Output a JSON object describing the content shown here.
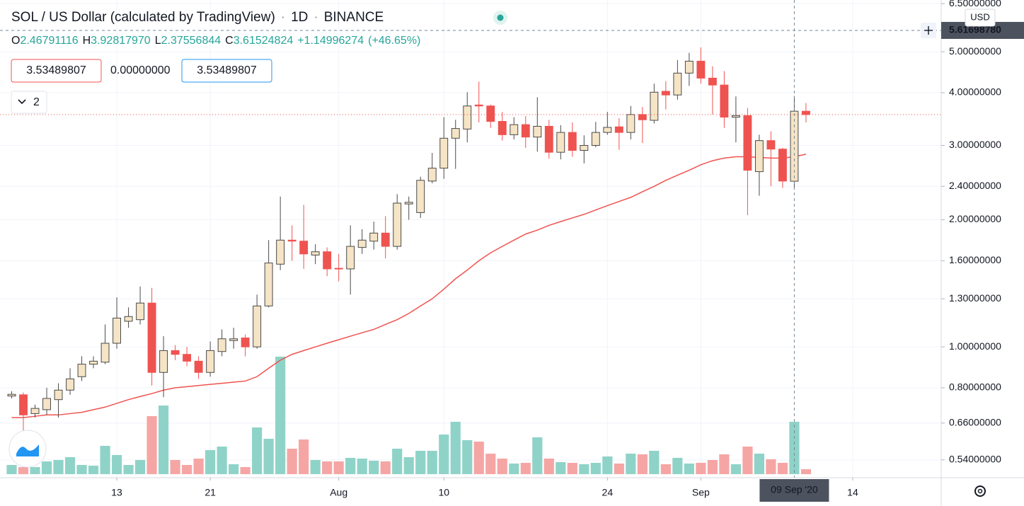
{
  "chart_data": {
    "type": "candlestick",
    "title": "SOL / US Dollar (calculated by TradingView)",
    "interval": "1D",
    "exchange": "BINANCE",
    "legend": {
      "items": [
        {
          "label": "O",
          "value": "2.46791116"
        },
        {
          "label": "H",
          "value": "3.92817970"
        },
        {
          "label": "L",
          "value": "2.37556844"
        },
        {
          "label": "C",
          "value": "3.61524824"
        }
      ],
      "change": "+1.14996274",
      "change_pct": "(+46.65%)"
    },
    "boxes": [
      "3.53489807",
      "0.00000000",
      "3.53489807"
    ],
    "indicators_count": "2",
    "currency": "USD",
    "x": [
      "2020-07-04",
      "2020-07-05",
      "2020-07-06",
      "2020-07-07",
      "2020-07-08",
      "2020-07-09",
      "2020-07-10",
      "2020-07-11",
      "2020-07-12",
      "2020-07-13",
      "2020-07-14",
      "2020-07-15",
      "2020-07-16",
      "2020-07-17",
      "2020-07-18",
      "2020-07-19",
      "2020-07-20",
      "2020-07-21",
      "2020-07-22",
      "2020-07-23",
      "2020-07-24",
      "2020-07-25",
      "2020-07-26",
      "2020-07-27",
      "2020-07-28",
      "2020-07-29",
      "2020-07-30",
      "2020-07-31",
      "2020-08-01",
      "2020-08-02",
      "2020-08-03",
      "2020-08-04",
      "2020-08-05",
      "2020-08-06",
      "2020-08-07",
      "2020-08-08",
      "2020-08-09",
      "2020-08-10",
      "2020-08-11",
      "2020-08-12",
      "2020-08-13",
      "2020-08-14",
      "2020-08-15",
      "2020-08-16",
      "2020-08-17",
      "2020-08-18",
      "2020-08-19",
      "2020-08-20",
      "2020-08-21",
      "2020-08-22",
      "2020-08-23",
      "2020-08-24",
      "2020-08-25",
      "2020-08-26",
      "2020-08-27",
      "2020-08-28",
      "2020-08-29",
      "2020-08-30",
      "2020-08-31",
      "2020-09-01",
      "2020-09-02",
      "2020-09-03",
      "2020-09-04",
      "2020-09-05",
      "2020-09-06",
      "2020-09-07",
      "2020-09-08",
      "2020-09-09",
      "2020-09-10"
    ],
    "open": [
      0.765,
      0.77,
      0.695,
      0.71,
      0.75,
      0.79,
      0.85,
      0.91,
      0.92,
      1.02,
      1.15,
      1.16,
      1.27,
      0.87,
      0.98,
      0.96,
      0.925,
      0.87,
      0.975,
      1.035,
      1.05,
      1.0,
      1.25,
      1.57,
      1.79,
      1.78,
      1.65,
      1.68,
      1.535,
      1.53,
      1.72,
      1.78,
      1.86,
      1.73,
      2.18,
      2.08,
      2.47,
      2.65,
      3.12,
      3.28,
      3.74,
      3.72,
      3.42,
      3.18,
      3.36,
      3.14,
      3.33,
      2.89,
      3.22,
      2.92,
      3.0,
      3.22,
      3.32,
      3.22,
      3.55,
      3.44,
      4.03,
      3.95,
      4.45,
      4.75,
      4.33,
      4.17,
      3.5,
      3.53,
      2.6,
      3.08,
      2.94,
      2.46791116,
      3.615
    ],
    "high": [
      0.785,
      0.78,
      0.73,
      0.8,
      0.82,
      0.89,
      0.95,
      0.95,
      1.13,
      1.31,
      1.24,
      1.39,
      1.38,
      1.06,
      1.01,
      1.0,
      0.95,
      1.03,
      1.1,
      1.11,
      1.07,
      1.33,
      1.79,
      2.27,
      1.94,
      2.17,
      1.75,
      1.72,
      1.66,
      1.94,
      1.9,
      1.98,
      2.04,
      2.3,
      2.27,
      2.53,
      2.88,
      3.5,
      3.45,
      4.01,
      4.25,
      3.75,
      3.6,
      3.5,
      3.52,
      3.9,
      3.45,
      3.35,
      3.4,
      3.17,
      3.41,
      3.6,
      3.48,
      3.72,
      3.7,
      4.2,
      4.26,
      4.78,
      4.97,
      5.12,
      4.62,
      4.5,
      3.92,
      3.68,
      3.18,
      3.24,
      2.96,
      3.9281797,
      3.78
    ],
    "low": [
      0.755,
      0.63,
      0.68,
      0.69,
      0.68,
      0.77,
      0.83,
      0.89,
      0.91,
      0.99,
      1.11,
      1.13,
      0.81,
      0.76,
      0.93,
      0.9,
      0.84,
      0.85,
      0.95,
      0.99,
      0.95,
      0.99,
      1.24,
      1.52,
      1.6,
      1.53,
      1.57,
      1.47,
      1.43,
      1.33,
      1.66,
      1.7,
      1.62,
      1.7,
      2.0,
      2.02,
      2.44,
      2.5,
      2.64,
      3.05,
      3.4,
      3.3,
      3.08,
      3.1,
      2.96,
      2.9,
      2.79,
      2.78,
      2.82,
      2.72,
      2.97,
      3.18,
      2.93,
      3.1,
      3.04,
      3.38,
      3.65,
      3.85,
      4.15,
      4.2,
      3.55,
      3.3,
      3.05,
      2.05,
      2.28,
      2.4,
      2.38,
      2.37556844,
      3.4
    ],
    "close": [
      0.772,
      0.69,
      0.715,
      0.755,
      0.79,
      0.84,
      0.91,
      0.925,
      1.02,
      1.17,
      1.18,
      1.27,
      0.87,
      0.98,
      0.96,
      0.925,
      0.87,
      0.98,
      1.045,
      1.045,
      1.0,
      1.25,
      1.58,
      1.79,
      1.78,
      1.66,
      1.68,
      1.53,
      1.53,
      1.73,
      1.79,
      1.86,
      1.73,
      2.19,
      2.2,
      2.48,
      2.65,
      3.12,
      3.29,
      3.72,
      3.72,
      3.42,
      3.18,
      3.36,
      3.14,
      3.33,
      2.89,
      3.22,
      2.92,
      3.0,
      3.22,
      3.31,
      3.22,
      3.55,
      3.45,
      4.01,
      3.95,
      4.45,
      4.75,
      4.33,
      4.17,
      3.5,
      3.53,
      2.62,
      3.08,
      2.94,
      2.47,
      3.61524824,
      3.55
    ],
    "volume": [
      13,
      10,
      10,
      18,
      20,
      24,
      13,
      12,
      40,
      27,
      13,
      20,
      82,
      97,
      20,
      13,
      22,
      34,
      39,
      14,
      10,
      66,
      50,
      166,
      36,
      49,
      20,
      18,
      18,
      23,
      22,
      19,
      18,
      36,
      24,
      33,
      33,
      56,
      74,
      48,
      46,
      29,
      22,
      15,
      16,
      52,
      22,
      17,
      16,
      14,
      16,
      25,
      15,
      29,
      28,
      33,
      14,
      23,
      15,
      16,
      20,
      28,
      14,
      39,
      29,
      21,
      16,
      74,
      7
    ],
    "ma": [
      0.68,
      0.68,
      0.685,
      0.69,
      0.69,
      0.695,
      0.7,
      0.71,
      0.72,
      0.735,
      0.75,
      0.763,
      0.775,
      0.79,
      0.8,
      0.805,
      0.81,
      0.815,
      0.82,
      0.825,
      0.83,
      0.85,
      0.89,
      0.93,
      0.96,
      0.98,
      1.0,
      1.02,
      1.04,
      1.06,
      1.08,
      1.1,
      1.13,
      1.16,
      1.2,
      1.25,
      1.3,
      1.37,
      1.45,
      1.52,
      1.6,
      1.67,
      1.73,
      1.79,
      1.85,
      1.89,
      1.94,
      1.98,
      2.02,
      2.06,
      2.11,
      2.16,
      2.21,
      2.26,
      2.33,
      2.4,
      2.48,
      2.55,
      2.62,
      2.7,
      2.76,
      2.8,
      2.82,
      2.82,
      2.81,
      2.8,
      2.8,
      2.82,
      2.86
    ],
    "up_color": "#f5e4c5",
    "up_border": "#4a4a4a",
    "down_color": "#ef5350",
    "volume_up_color": "#8fd3c8",
    "volume_down_color": "#f6a5a5",
    "ma_color": "#ef5350",
    "log_scale": true,
    "grid": true,
    "xlim": [
      "2020-07-03",
      "2020-09-22"
    ],
    "ylim": [
      0.49,
      6.63
    ],
    "yticks": [
      {
        "value": 6.5,
        "label": "6.50000000"
      },
      {
        "value": 5,
        "label": "5.00000000"
      },
      {
        "value": 4,
        "label": "4.00000000"
      },
      {
        "value": 3,
        "label": "3.00000000"
      },
      {
        "value": 2.4,
        "label": "2.40000000"
      },
      {
        "value": 2,
        "label": "2.00000000"
      },
      {
        "value": 1.6,
        "label": "1.60000000"
      },
      {
        "value": 1.3,
        "label": "1.30000000"
      },
      {
        "value": 1,
        "label": "1.00000000"
      },
      {
        "value": 0.8,
        "label": "0.80000000"
      },
      {
        "value": 0.66,
        "label": "0.66000000"
      },
      {
        "value": 0.54,
        "label": "0.54000000"
      }
    ],
    "xticks": [
      {
        "value": "2020-07-13",
        "label": "13"
      },
      {
        "value": "2020-07-21",
        "label": "21"
      },
      {
        "value": "2020-08-01",
        "label": "Aug"
      },
      {
        "value": "2020-08-10",
        "label": "10"
      },
      {
        "value": "2020-08-24",
        "label": "24"
      },
      {
        "value": "2020-09-01",
        "label": "Sep"
      },
      {
        "value": "2020-09-14",
        "label": "14"
      }
    ],
    "crosshair": {
      "x": "2020-09-09",
      "date_label": "09 Sep '20",
      "price": {
        "value": 5.6169878,
        "label": "5.61698780"
      }
    }
  }
}
